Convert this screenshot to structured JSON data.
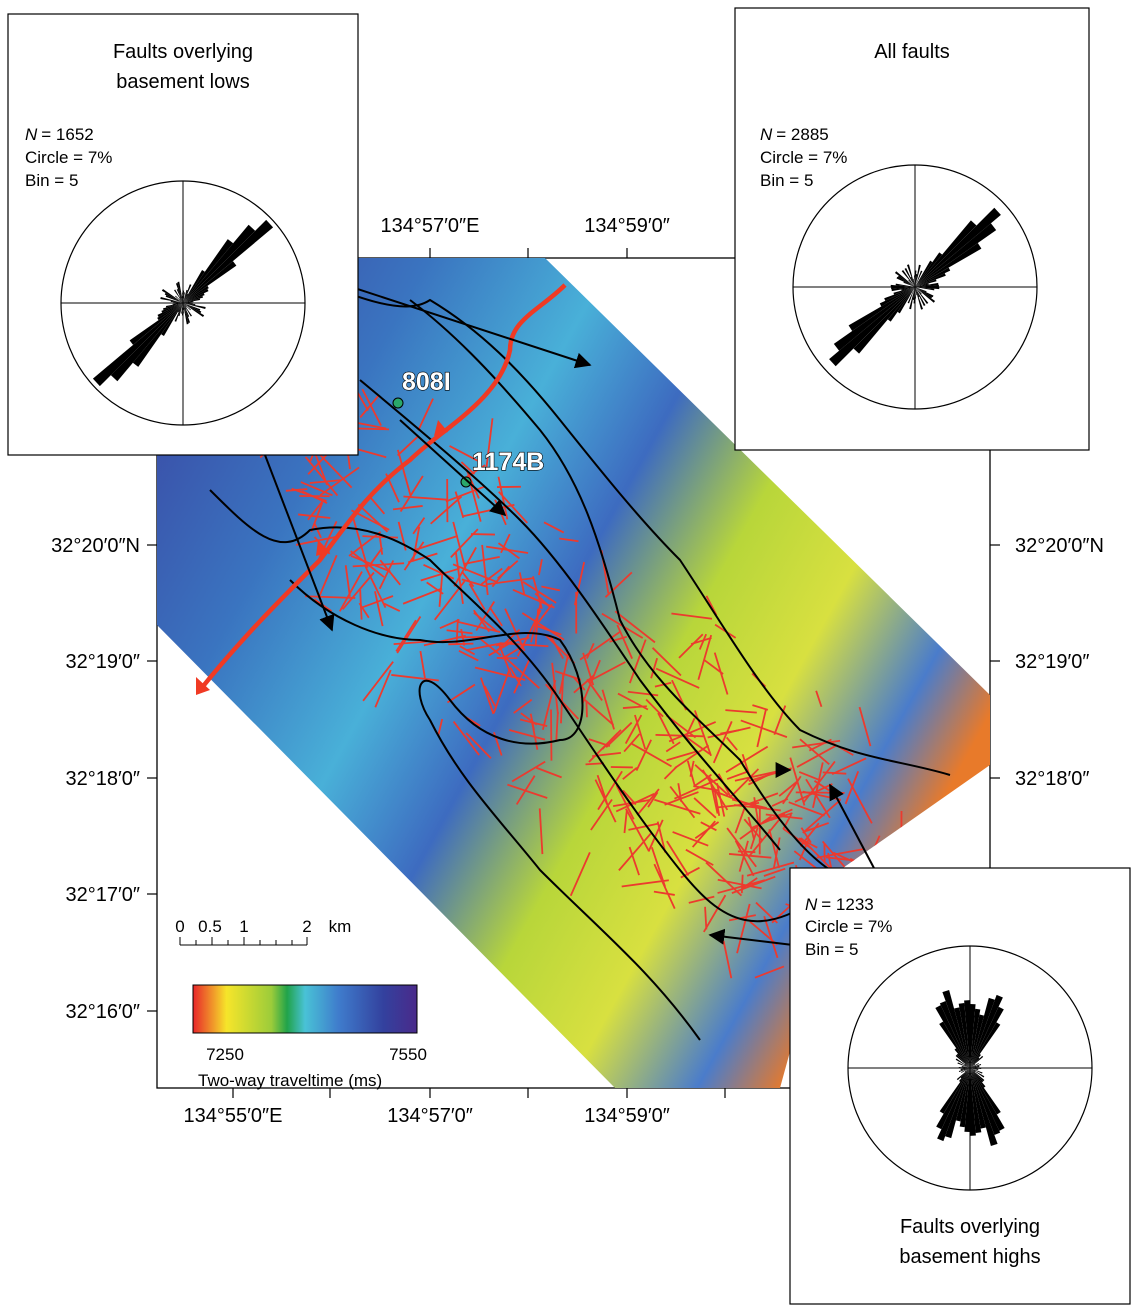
{
  "panels": [
    {
      "title": [
        "Faults overlying",
        "basement lows"
      ],
      "n_symbol": "N",
      "n_value": "= 1652",
      "circle": "Circle = 7%",
      "bin": "Bin = 5"
    },
    {
      "title": [
        "All faults"
      ],
      "n_symbol": "N",
      "n_value": "= 2885",
      "circle": "Circle = 7%",
      "bin": "Bin = 5"
    },
    {
      "title": [
        "Faults overlying",
        "basement highs"
      ],
      "n_symbol": "N",
      "n_value": "= 1233",
      "circle": "Circle = 7%",
      "bin": "Bin = 5"
    }
  ],
  "longitude_top": [
    "134°57′0″E",
    "134°59′0″"
  ],
  "longitude_bottom": [
    "134°55′0″E",
    "134°57′0″",
    "134°59′0″"
  ],
  "latitude_left": [
    "32°20′0″N",
    "32°19′0″",
    "32°18′0″",
    "32°17′0″",
    "32°16′0″"
  ],
  "latitude_right": [
    "32°20′0″N",
    "32°19′0″",
    "32°18′0″"
  ],
  "sites": [
    "808I",
    "1174B"
  ],
  "scale_bar": {
    "labels": [
      0,
      0.5,
      1,
      2
    ],
    "unit": "km"
  },
  "colorbar": {
    "min": 7250,
    "max": 7550,
    "label": "Two-way traveltime (ms)"
  }
}
